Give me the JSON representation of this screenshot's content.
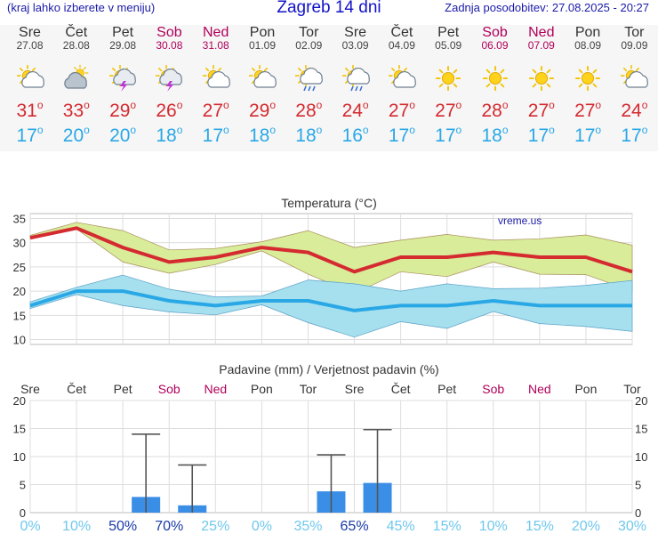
{
  "header": {
    "note": "(kraj lahko izberete v meniju)",
    "title": "Zagreb 14 dni",
    "updated": "Zadnja posodobitev: 27.08.2025 - 20:27"
  },
  "days": [
    {
      "name": "Sre",
      "date": "27.08",
      "icon": "partly-cloudy-sun-icon",
      "max": "31",
      "min": "17",
      "weekend": false
    },
    {
      "name": "Čet",
      "date": "28.08",
      "icon": "cloudy-sun-icon",
      "max": "33",
      "min": "20",
      "weekend": false
    },
    {
      "name": "Pet",
      "date": "29.08",
      "icon": "thunderstorm-sun-icon",
      "max": "29",
      "min": "20",
      "weekend": false
    },
    {
      "name": "Sob",
      "date": "30.08",
      "icon": "thunderstorm-sun-icon",
      "max": "26",
      "min": "18",
      "weekend": true
    },
    {
      "name": "Ned",
      "date": "31.08",
      "icon": "partly-cloudy-sun-icon",
      "max": "27",
      "min": "17",
      "weekend": true
    },
    {
      "name": "Pon",
      "date": "01.09",
      "icon": "partly-cloudy-sun-icon",
      "max": "29",
      "min": "18",
      "weekend": false
    },
    {
      "name": "Tor",
      "date": "02.09",
      "icon": "rain-cloud-sun-icon",
      "max": "28",
      "min": "18",
      "weekend": false
    },
    {
      "name": "Sre",
      "date": "03.09",
      "icon": "rain-cloud-sun-icon",
      "max": "24",
      "min": "16",
      "weekend": false
    },
    {
      "name": "Čet",
      "date": "04.09",
      "icon": "partly-cloudy-sun-icon",
      "max": "27",
      "min": "17",
      "weekend": false
    },
    {
      "name": "Pet",
      "date": "05.09",
      "icon": "sun-icon",
      "max": "27",
      "min": "17",
      "weekend": false
    },
    {
      "name": "Sob",
      "date": "06.09",
      "icon": "sun-icon",
      "max": "28",
      "min": "18",
      "weekend": true
    },
    {
      "name": "Ned",
      "date": "07.09",
      "icon": "sun-icon",
      "max": "27",
      "min": "17",
      "weekend": true
    },
    {
      "name": "Pon",
      "date": "08.09",
      "icon": "sun-icon",
      "max": "27",
      "min": "17",
      "weekend": false
    },
    {
      "name": "Tor",
      "date": "09.09",
      "icon": "partly-cloudy-sun-icon",
      "max": "24",
      "min": "17",
      "weekend": false
    }
  ],
  "colors": {
    "max": "#d42a30",
    "min": "#2aa8e6",
    "weekend": "#b0005a",
    "max_band": "#d8ec9a",
    "min_band": "#a6e0ee",
    "bar": "#3a8ee6"
  },
  "chart_data": [
    {
      "type": "line",
      "title": "Temperatura (°C)",
      "watermark": "vreme.us",
      "categories": [
        "Sre",
        "Čet",
        "Pet",
        "Sob",
        "Ned",
        "Pon",
        "Tor",
        "Sre",
        "Čet",
        "Pet",
        "Sob",
        "Ned",
        "Pon",
        "Tor"
      ],
      "ylim": [
        9,
        36
      ],
      "yticks": [
        10,
        15,
        20,
        25,
        30,
        35
      ],
      "series": [
        {
          "values": [
            31,
            33,
            29,
            26,
            27,
            29,
            28,
            24,
            27,
            27,
            28,
            27,
            27,
            24
          ],
          "band_upper": [
            31.5,
            34.2,
            32.5,
            28.5,
            28.8,
            30.2,
            32.5,
            29,
            30.5,
            31.7,
            30.5,
            30.8,
            31.6,
            29.5
          ],
          "band_lower": [
            30.8,
            32.8,
            26,
            23.7,
            25.5,
            28.3,
            23.5,
            19.5,
            24,
            23,
            26,
            23.5,
            23.4,
            20
          ]
        },
        {
          "values": [
            17,
            20,
            20,
            18,
            17,
            18,
            18,
            16,
            17,
            17,
            18,
            17,
            17,
            17
          ],
          "band_upper": [
            17.8,
            20.8,
            23.3,
            20.4,
            18.8,
            19,
            22.3,
            21.5,
            20,
            21.5,
            20.5,
            20.6,
            21.2,
            22.2
          ],
          "band_lower": [
            16.4,
            19.3,
            17,
            15.7,
            15.1,
            17.2,
            13.5,
            10.5,
            13.7,
            12.3,
            15.8,
            13.3,
            12.7,
            11.7
          ]
        }
      ]
    },
    {
      "type": "bar",
      "title": "Padavine (mm) / Verjetnost padavin (%)",
      "categories": [
        "Sre",
        "Čet",
        "Pet",
        "Sob",
        "Ned",
        "Pon",
        "Tor",
        "Sre",
        "Čet",
        "Pet",
        "Sob",
        "Ned",
        "Pon",
        "Tor"
      ],
      "weekend": [
        false,
        false,
        false,
        true,
        true,
        false,
        false,
        false,
        false,
        false,
        true,
        true,
        false,
        false
      ],
      "ylim": [
        0,
        20
      ],
      "yticks": [
        0,
        5,
        10,
        15,
        20
      ],
      "values": [
        0,
        0,
        2.8,
        1.3,
        0,
        0,
        3.8,
        5.3,
        0,
        0,
        0,
        0,
        0,
        0
      ],
      "upper": [
        0,
        0,
        14,
        8.5,
        0,
        0,
        10.3,
        14.8,
        0,
        0,
        0,
        0,
        0,
        0
      ],
      "probability": [
        "0%",
        "10%",
        "50%",
        "70%",
        "25%",
        "0%",
        "35%",
        "65%",
        "45%",
        "15%",
        "10%",
        "15%",
        "20%",
        "30%"
      ]
    }
  ]
}
